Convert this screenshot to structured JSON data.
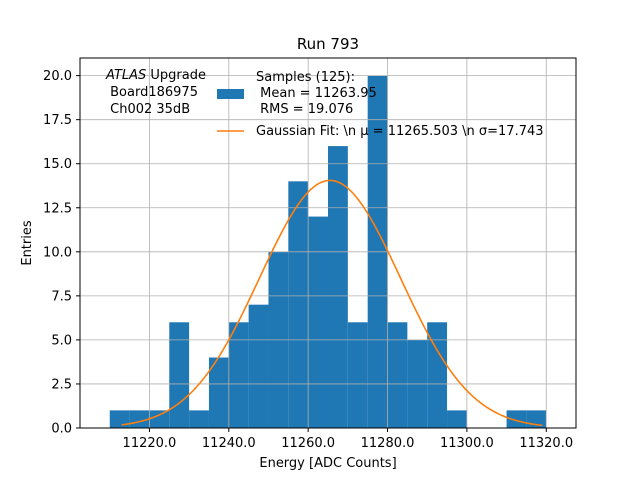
{
  "chart_data": {
    "type": "bar",
    "title": "Run 793",
    "xlabel": "Energy [ADC Counts]",
    "ylabel": "Entries",
    "xlim": [
      11202.5,
      11327.5
    ],
    "ylim": [
      0,
      21
    ],
    "grid": true,
    "legend_placement": "top-right",
    "xticks": [
      11220,
      11240,
      11260,
      11280,
      11300,
      11320
    ],
    "xtick_labels": [
      "11220.0",
      "11240.0",
      "11260.0",
      "11280.0",
      "11300.0",
      "11320.0"
    ],
    "yticks": [
      0,
      2.5,
      5,
      7.5,
      10,
      12.5,
      15,
      17.5,
      20
    ],
    "ytick_labels": [
      "0.0",
      "2.5",
      "5.0",
      "7.5",
      "10.0",
      "12.5",
      "15.0",
      "17.5",
      "20.0"
    ],
    "bin_edges": [
      11210,
      11215,
      11220,
      11225,
      11230,
      11235,
      11240,
      11245,
      11250,
      11255,
      11260,
      11265,
      11270,
      11275,
      11280,
      11285,
      11290,
      11295,
      11300,
      11305,
      11310,
      11315,
      11320
    ],
    "counts": [
      1,
      1,
      1,
      6,
      1,
      4,
      6,
      7,
      10,
      14,
      12,
      16,
      6,
      20,
      6,
      5,
      6,
      1,
      0,
      0,
      1,
      1
    ],
    "fit": {
      "type": "gaussian",
      "mu": 11265.503,
      "sigma": 17.743,
      "x_range": [
        11213,
        11319
      ]
    },
    "annotation": {
      "italic": "ATLAS",
      "rest": " Upgrade",
      "line2": " Board186975",
      "line3": " Ch002 35dB"
    },
    "legend": [
      {
        "kind": "patch",
        "lines": [
          "Samples (125):",
          " Mean = 11263.95",
          " RMS = 19.076"
        ]
      },
      {
        "kind": "line",
        "text": "Gaussian Fit: \\n μ = 11265.503 \\n σ=17.743"
      }
    ],
    "colors": {
      "bars": "#1f77b4",
      "fit": "#ff7f0e",
      "grid": "#b0b0b0",
      "axes": "#000000"
    }
  }
}
